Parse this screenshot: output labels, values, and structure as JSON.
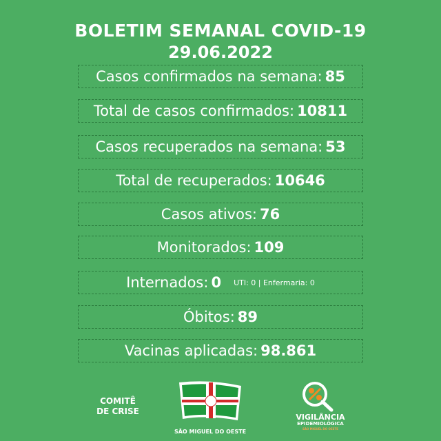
{
  "header": {
    "title": "BOLETIM SEMANAL COVID-19",
    "date": "29.06.2022"
  },
  "rows": [
    {
      "label": "Casos confirmados na semana:",
      "value": "85"
    },
    {
      "label": "Total de casos confirmados:",
      "value": "10811"
    },
    {
      "label": "Casos recuperados na semana:",
      "value": "53"
    },
    {
      "label": "Total de recuperados:",
      "value": "10646"
    },
    {
      "label": "Casos ativos:",
      "value": "76"
    },
    {
      "label": "Monitorados:",
      "value": "109"
    },
    {
      "label": "Internados:",
      "value": "0",
      "detail": "UTI: 0 | Enfermaria: 0"
    },
    {
      "label": "Óbitos:",
      "value": "89"
    },
    {
      "label": "Vacinas aplicadas:",
      "value": "98.861"
    }
  ],
  "footer": {
    "comite_line1": "COMITÊ",
    "comite_line2": "DE CRISE",
    "city": "SÃO MIGUEL DO OESTE",
    "vig_line1": "VIGILÂNCIA",
    "vig_line2": "EPIDEMIOLÓGICA",
    "vig_line3": "SÃO MIGUEL DO OESTE"
  },
  "colors": {
    "background": "#4cae62",
    "border": "#2a7a3c",
    "flag_red": "#d32a2a",
    "accent_orange": "#f08a24"
  }
}
